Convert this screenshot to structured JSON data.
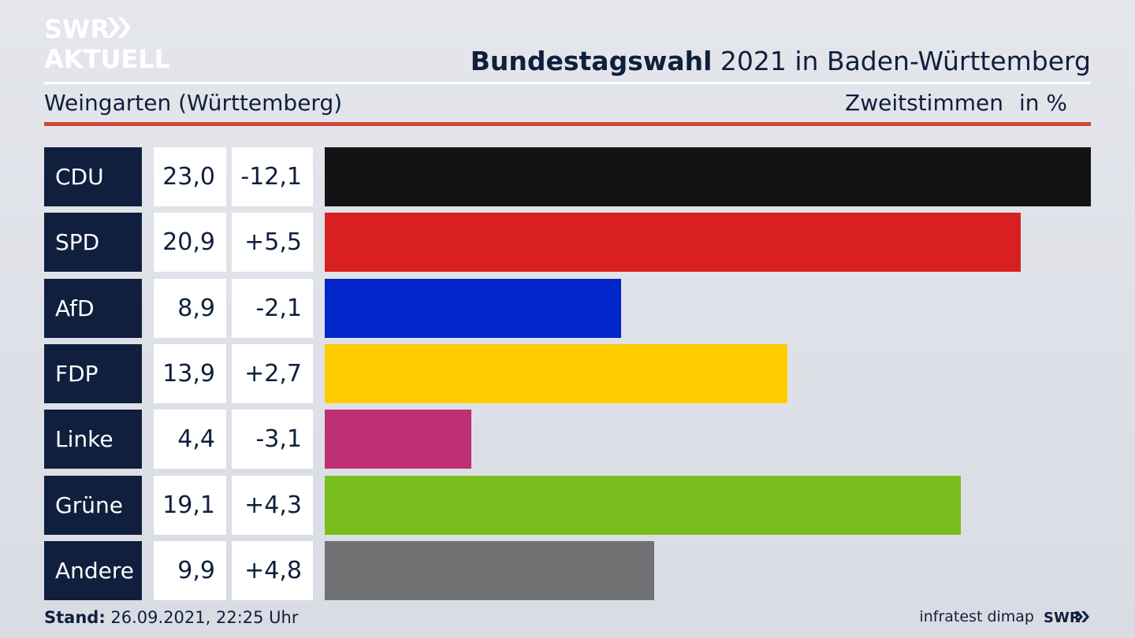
{
  "brand": {
    "logo_top": "SWR",
    "logo_bottom": "AKTUELL"
  },
  "header": {
    "title_bold": "Bundestagswahl",
    "title_rest": " 2021 in Baden-Württemberg",
    "subtitle": "Weingarten (Württemberg)",
    "metric": "Zweitstimmen",
    "unit": "in %"
  },
  "chart_data": {
    "type": "bar",
    "orientation": "horizontal",
    "categories": [
      "CDU",
      "SPD",
      "AfD",
      "FDP",
      "Linke",
      "Grüne",
      "Andere"
    ],
    "series": [
      {
        "values": [
          23.0,
          20.9,
          8.9,
          13.9,
          4.4,
          19.1,
          9.9
        ]
      }
    ],
    "share_labels": [
      "23,0",
      "20,9",
      "8,9",
      "13,9",
      "4,4",
      "19,1",
      "9,9"
    ],
    "change_labels": [
      "-12,1",
      "+5,5",
      "-2,1",
      "+2,7",
      "-3,1",
      "+4,3",
      "+4,8"
    ],
    "colors": [
      "#131313",
      "#d92020",
      "#0025c8",
      "#ffcc00",
      "#bf2f73",
      "#78be1c",
      "#707173"
    ],
    "xlim": [
      0,
      23.0
    ],
    "grid": false
  },
  "footer": {
    "stand_label": "Stand:",
    "stand_value": " 26.09.2021, 22:25 Uhr",
    "source": "infratest dimap",
    "brand": "SWR"
  }
}
